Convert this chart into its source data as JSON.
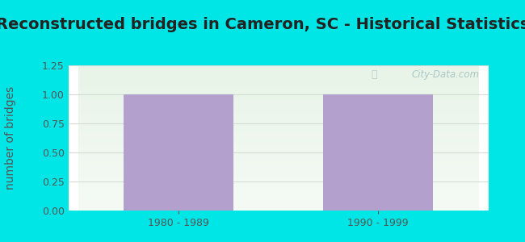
{
  "title": "Reconstructed bridges in Cameron, SC - Historical Statistics",
  "categories": [
    "1980 - 1989",
    "1990 - 1999"
  ],
  "values": [
    1,
    1
  ],
  "bar_color": "#b3a0cc",
  "ylabel": "number of bridges",
  "ylim": [
    0,
    1.25
  ],
  "yticks": [
    0,
    0.25,
    0.5,
    0.75,
    1,
    1.25
  ],
  "background_outer": "#00e5e5",
  "background_inner_top": "#e8f4e8",
  "background_inner_bottom": "#f5faf5",
  "grid_color": "#d0ddd0",
  "title_fontsize": 14,
  "ylabel_fontsize": 10,
  "tick_fontsize": 9,
  "bar_width": 0.55,
  "watermark": "City-Data.com",
  "title_color": "#222222",
  "ylabel_color": "#555555",
  "tick_color": "#555555"
}
